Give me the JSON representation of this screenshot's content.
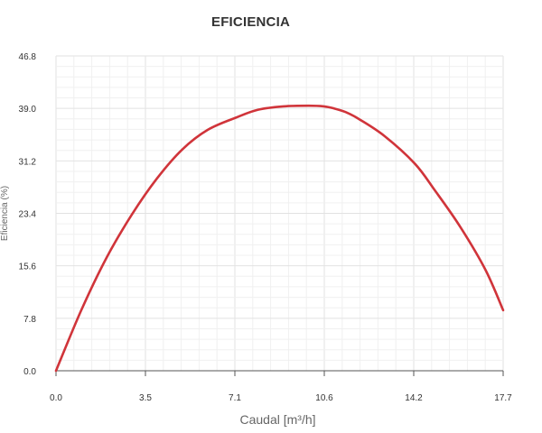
{
  "chart_data": {
    "type": "line",
    "title": "EFICIENCIA",
    "xlabel": "Caudal [m³/h]",
    "ylabel": "Eficiencia (%)",
    "xlim": [
      0,
      17.7
    ],
    "ylim": [
      0,
      46.8
    ],
    "x_ticks": [
      "0.0",
      "3.5",
      "7.1",
      "10.6",
      "14.2",
      "17.7"
    ],
    "y_ticks": [
      "0.0",
      "7.8",
      "15.6",
      "23.4",
      "31.2",
      "39.0",
      "46.8"
    ],
    "grid": true,
    "series": [
      {
        "color": "#d0343a",
        "x": [
          0,
          1.0,
          2.0,
          3.0,
          4.0,
          5.0,
          6.0,
          7.1,
          8.0,
          9.0,
          10.0,
          10.6,
          11.0,
          11.5,
          12.0,
          13.0,
          14.2,
          15.0,
          16.0,
          17.0,
          17.7
        ],
        "y": [
          0,
          9.0,
          16.8,
          23.2,
          28.6,
          32.9,
          35.8,
          37.6,
          38.8,
          39.3,
          39.4,
          39.3,
          39.0,
          38.4,
          37.4,
          34.9,
          30.8,
          26.8,
          21.4,
          15.0,
          9.0
        ]
      }
    ]
  }
}
